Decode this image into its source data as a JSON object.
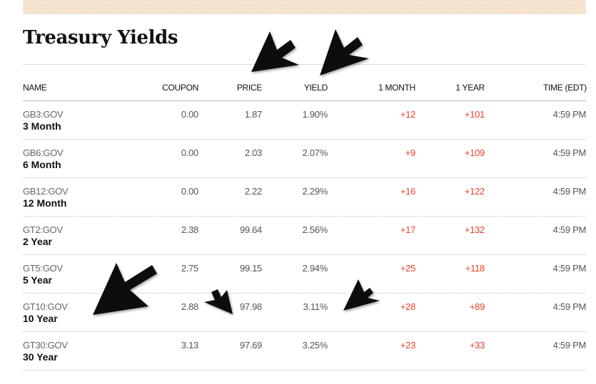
{
  "title": "Treasury Yields",
  "columns": {
    "name": "NAME",
    "coupon": "COUPON",
    "price": "PRICE",
    "yield": "YIELD",
    "month1": "1 MONTH",
    "year1": "1 YEAR",
    "time": "TIME (EDT)"
  },
  "rows": [
    {
      "ticker": "GB3:GOV",
      "tenor": "3 Month",
      "coupon": "0.00",
      "price": "1.87",
      "yield": "1.90%",
      "month1": "+12",
      "year1": "+101",
      "time": "4:59 PM"
    },
    {
      "ticker": "GB6:GOV",
      "tenor": "6 Month",
      "coupon": "0.00",
      "price": "2.03",
      "yield": "2.07%",
      "month1": "+9",
      "year1": "+109",
      "time": "4:59 PM"
    },
    {
      "ticker": "GB12:GOV",
      "tenor": "12 Month",
      "coupon": "0.00",
      "price": "2.22",
      "yield": "2.29%",
      "month1": "+16",
      "year1": "+122",
      "time": "4:59 PM"
    },
    {
      "ticker": "GT2:GOV",
      "tenor": "2 Year",
      "coupon": "2.38",
      "price": "99.64",
      "yield": "2.56%",
      "month1": "+17",
      "year1": "+132",
      "time": "4:59 PM"
    },
    {
      "ticker": "GT5:GOV",
      "tenor": "5 Year",
      "coupon": "2.75",
      "price": "99.15",
      "yield": "2.94%",
      "month1": "+25",
      "year1": "+118",
      "time": "4:59 PM"
    },
    {
      "ticker": "GT10:GOV",
      "tenor": "10 Year",
      "coupon": "2.88",
      "price": "97.98",
      "yield": "3.11%",
      "month1": "+28",
      "year1": "+89",
      "time": "4:59 PM"
    },
    {
      "ticker": "GT30:GOV",
      "tenor": "30 Year",
      "coupon": "3.13",
      "price": "97.69",
      "yield": "3.25%",
      "month1": "+23",
      "year1": "+33",
      "time": "4:59 PM"
    }
  ],
  "colors": {
    "positive_change": "#e8412c",
    "banner": "#f3dcc2",
    "arrow": "#111111"
  },
  "annotations": {
    "arrow_icon": "black-arrow-icon"
  }
}
